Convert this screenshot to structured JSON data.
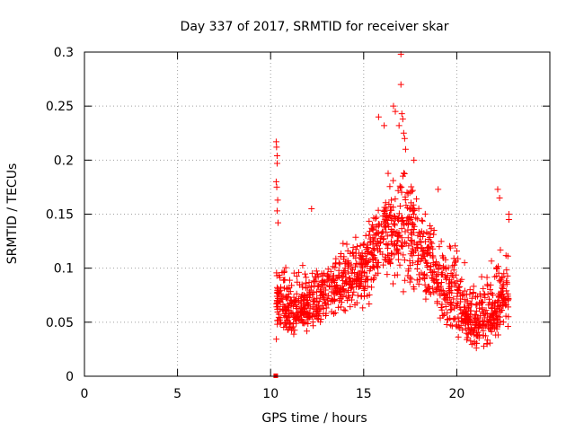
{
  "chart_data": {
    "type": "scatter",
    "title": "Day 337 of 2017, SRMTID for receiver skar",
    "xlabel": "GPS time / hours",
    "ylabel": "SRMTID / TECUs",
    "xlim": [
      0,
      25
    ],
    "ylim": [
      0,
      0.3
    ],
    "xticks": [
      0,
      5,
      10,
      15,
      20
    ],
    "xtick_labels": [
      "0",
      "5",
      "10",
      "15",
      "20"
    ],
    "yticks": [
      0,
      0.05,
      0.1,
      0.15,
      0.2,
      0.25,
      0.3
    ],
    "ytick_labels": [
      "0",
      "0.05",
      "0.1",
      "0.15",
      "0.2",
      "0.25",
      "0.3"
    ],
    "grid": true,
    "marker": "+",
    "color": "#ff0000",
    "envelope": [
      {
        "t": 10.3,
        "lo": 0.03,
        "hi": 0.12,
        "ref": 0.07
      },
      {
        "t": 11.0,
        "lo": 0.03,
        "hi": 0.11,
        "ref": 0.06
      },
      {
        "t": 12.0,
        "lo": 0.03,
        "hi": 0.11,
        "ref": 0.06
      },
      {
        "t": 13.0,
        "lo": 0.045,
        "hi": 0.11,
        "ref": 0.08
      },
      {
        "t": 14.0,
        "lo": 0.05,
        "hi": 0.13,
        "ref": 0.09
      },
      {
        "t": 15.0,
        "lo": 0.05,
        "hi": 0.15,
        "ref": 0.1
      },
      {
        "t": 16.0,
        "lo": 0.07,
        "hi": 0.18,
        "ref": 0.13
      },
      {
        "t": 17.0,
        "lo": 0.07,
        "hi": 0.22,
        "ref": 0.14
      },
      {
        "t": 18.0,
        "lo": 0.05,
        "hi": 0.18,
        "ref": 0.12
      },
      {
        "t": 19.0,
        "lo": 0.04,
        "hi": 0.15,
        "ref": 0.09
      },
      {
        "t": 20.0,
        "lo": 0.03,
        "hi": 0.13,
        "ref": 0.07
      },
      {
        "t": 21.0,
        "lo": 0.015,
        "hi": 0.09,
        "ref": 0.05
      },
      {
        "t": 22.0,
        "lo": 0.02,
        "hi": 0.12,
        "ref": 0.06
      },
      {
        "t": 22.8,
        "lo": 0.04,
        "hi": 0.12,
        "ref": 0.08
      }
    ],
    "spikes": [
      {
        "x": 10.3,
        "y": 0.217
      },
      {
        "x": 10.32,
        "y": 0.212
      },
      {
        "x": 10.35,
        "y": 0.204
      },
      {
        "x": 10.35,
        "y": 0.197
      },
      {
        "x": 10.3,
        "y": 0.18
      },
      {
        "x": 10.33,
        "y": 0.175
      },
      {
        "x": 10.38,
        "y": 0.163
      },
      {
        "x": 10.35,
        "y": 0.153
      },
      {
        "x": 10.4,
        "y": 0.142
      },
      {
        "x": 12.2,
        "y": 0.155
      },
      {
        "x": 15.8,
        "y": 0.24
      },
      {
        "x": 16.1,
        "y": 0.232
      },
      {
        "x": 16.6,
        "y": 0.25
      },
      {
        "x": 16.7,
        "y": 0.245
      },
      {
        "x": 17.0,
        "y": 0.298
      },
      {
        "x": 17.0,
        "y": 0.27
      },
      {
        "x": 17.05,
        "y": 0.243
      },
      {
        "x": 17.1,
        "y": 0.238
      },
      {
        "x": 17.15,
        "y": 0.225
      },
      {
        "x": 17.2,
        "y": 0.22
      },
      {
        "x": 17.25,
        "y": 0.21
      },
      {
        "x": 16.9,
        "y": 0.232
      },
      {
        "x": 17.7,
        "y": 0.2
      },
      {
        "x": 19.0,
        "y": 0.173
      },
      {
        "x": 22.2,
        "y": 0.173
      },
      {
        "x": 22.3,
        "y": 0.165
      },
      {
        "x": 22.8,
        "y": 0.15
      },
      {
        "x": 22.8,
        "y": 0.145
      }
    ],
    "points_per_hour": 110,
    "marker_at_zero": {
      "x": 10.3,
      "y": 0
    }
  }
}
